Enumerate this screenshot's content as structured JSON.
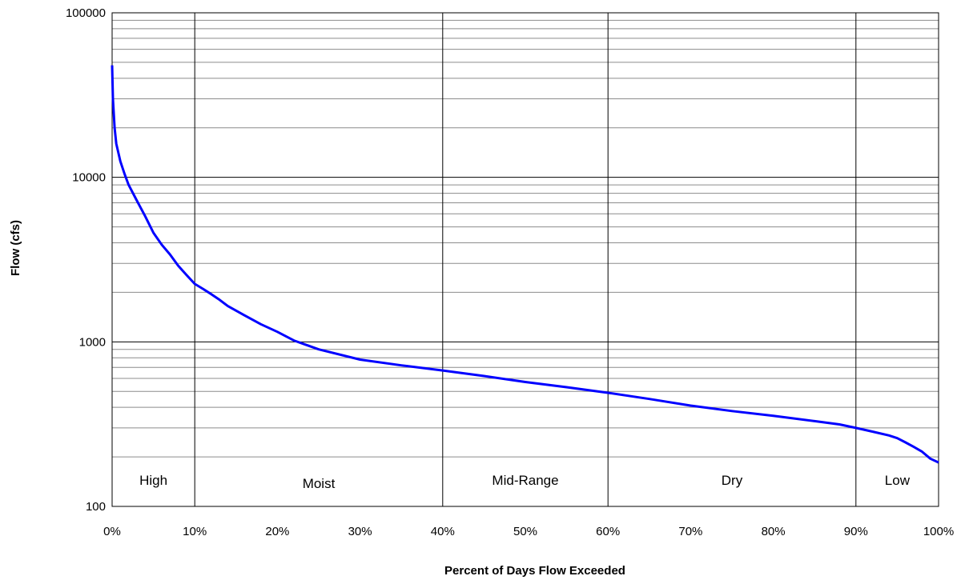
{
  "chart_data": {
    "type": "line",
    "title": "",
    "xlabel": "Percent of Days Flow Exceeded",
    "ylabel": "Flow (cfs)",
    "y_scale": "log",
    "xlim": [
      0,
      100
    ],
    "ylim": [
      100,
      100000
    ],
    "grid": true,
    "x_ticks": [
      "0%",
      "10%",
      "20%",
      "30%",
      "40%",
      "50%",
      "60%",
      "70%",
      "80%",
      "90%",
      "100%"
    ],
    "y_ticks": [
      "100",
      "1000",
      "10000",
      "100000"
    ],
    "zones": [
      {
        "label": "High",
        "from": 0,
        "to": 10
      },
      {
        "label": "Moist",
        "from": 10,
        "to": 40
      },
      {
        "label": "Mid-Range",
        "from": 40,
        "to": 60
      },
      {
        "label": "Dry",
        "from": 60,
        "to": 90
      },
      {
        "label": "Low",
        "from": 90,
        "to": 100
      }
    ],
    "series": [
      {
        "line_color": "#0000ff",
        "x": [
          0,
          0.1,
          0.3,
          0.5,
          1,
          1.5,
          2,
          3,
          4,
          5,
          6,
          7,
          8,
          9,
          10,
          11,
          12,
          13,
          14,
          16,
          18,
          20,
          22,
          25,
          30,
          35,
          40,
          45,
          50,
          55,
          60,
          65,
          70,
          75,
          80,
          85,
          88,
          90,
          92,
          94,
          95,
          96,
          97,
          98,
          99,
          100
        ],
        "y": [
          48000,
          30000,
          20000,
          16000,
          12500,
          10500,
          9000,
          7200,
          5800,
          4600,
          3900,
          3400,
          2900,
          2550,
          2250,
          2100,
          1950,
          1800,
          1650,
          1450,
          1280,
          1150,
          1020,
          900,
          780,
          720,
          670,
          620,
          570,
          530,
          490,
          450,
          410,
          380,
          355,
          330,
          315,
          300,
          285,
          270,
          260,
          245,
          230,
          215,
          195,
          185
        ]
      }
    ]
  }
}
